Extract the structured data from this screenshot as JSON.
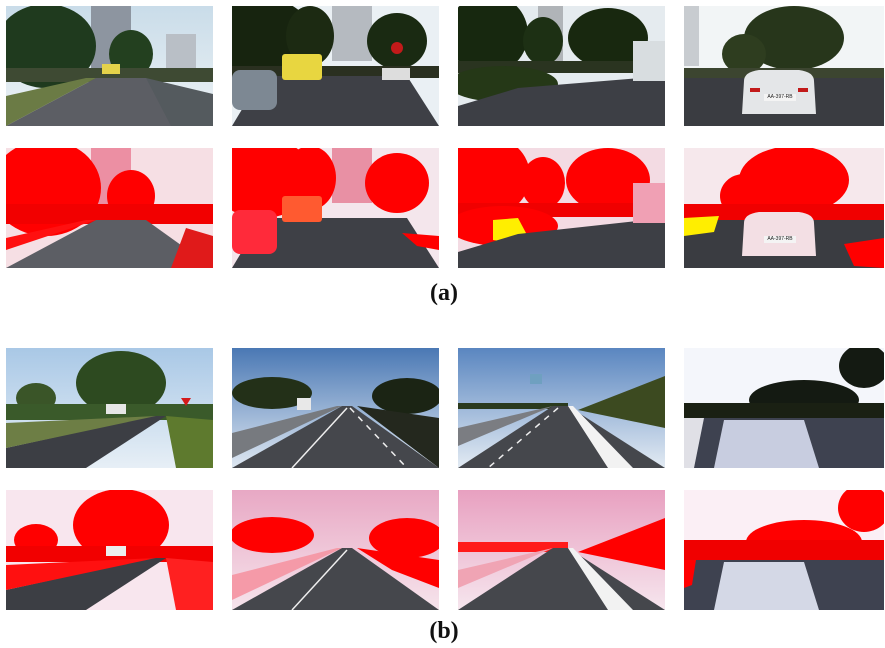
{
  "figure": {
    "captions": {
      "a": "(a)",
      "b": "(b)"
    },
    "colors": {
      "overlay_primary": "#ff0000",
      "overlay_secondary": "#ffee00",
      "road": "#4a4a50"
    },
    "panel_a": {
      "original_row": [
        {
          "scene": "suburban-road-with-van",
          "sign_text": ""
        },
        {
          "scene": "intersection-with-yellow-van",
          "sign_text": ""
        },
        {
          "scene": "roundabout-with-bus",
          "sign_text": ""
        },
        {
          "scene": "white-car-rear-view",
          "sign_text": "AA-397-RB"
        }
      ],
      "mask_row": [
        {
          "scene": "suburban-road-with-van-mask",
          "sign_text": ""
        },
        {
          "scene": "intersection-with-yellow-van-mask",
          "sign_text": ""
        },
        {
          "scene": "roundabout-with-bus-mask",
          "sign_text": ""
        },
        {
          "scene": "white-car-rear-view-mask",
          "sign_text": "AA-397-RB"
        }
      ]
    },
    "panel_b": {
      "original_row": [
        {
          "scene": "rural-curve-with-yield-sign"
        },
        {
          "scene": "highway-with-truck"
        },
        {
          "scene": "highway-with-bridge-sign"
        },
        {
          "scene": "road-with-sun-glare"
        }
      ],
      "mask_row": [
        {
          "scene": "rural-curve-with-yield-sign-mask"
        },
        {
          "scene": "highway-with-truck-mask"
        },
        {
          "scene": "highway-with-bridge-sign-mask"
        },
        {
          "scene": "road-with-sun-glare-mask"
        }
      ]
    }
  }
}
